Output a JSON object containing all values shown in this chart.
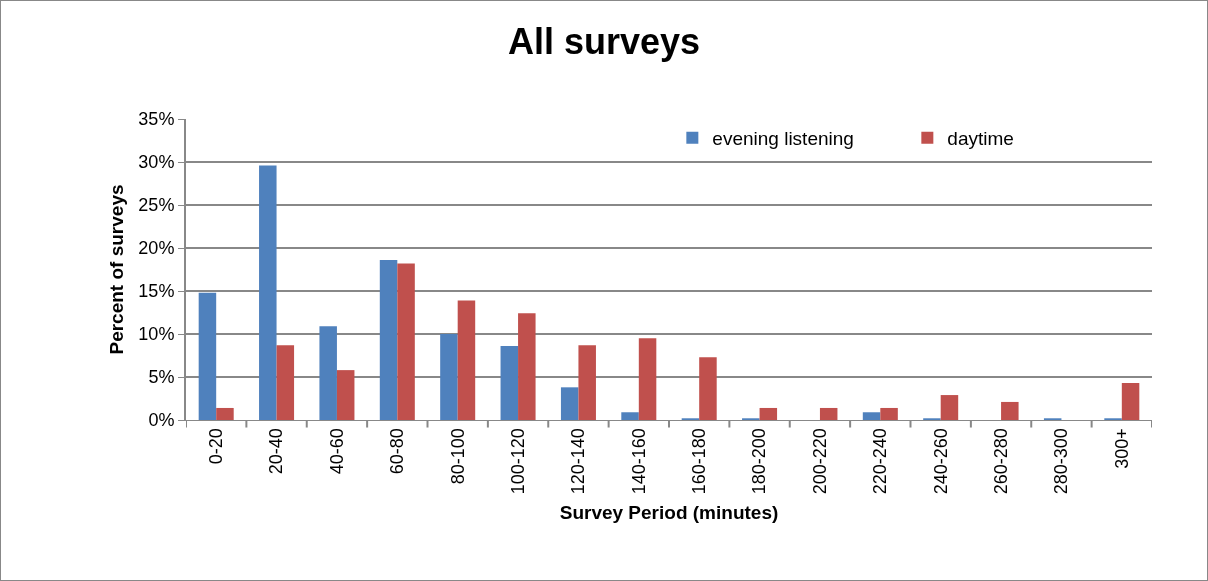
{
  "chart_data": {
    "type": "bar",
    "title": "All surveys",
    "xlabel": "Survey Period (minutes)",
    "ylabel": "Percent of surveys",
    "categories": [
      "0-20",
      "20-40",
      "40-60",
      "60-80",
      "80-100",
      "100-120",
      "120-140",
      "140-160",
      "160-180",
      "180-200",
      "200-220",
      "220-240",
      "240-260",
      "260-280",
      "280-300",
      "300+"
    ],
    "series": [
      {
        "name": "evening listening",
        "color": "#4f81bd",
        "values": [
          14.8,
          29.6,
          10.9,
          18.6,
          10.0,
          8.6,
          3.8,
          0.9,
          0.2,
          0.2,
          0,
          0.9,
          0.2,
          0,
          0.2,
          0.2
        ]
      },
      {
        "name": "daytime",
        "color": "#c0504d",
        "values": [
          1.4,
          8.7,
          5.8,
          18.2,
          13.9,
          12.4,
          8.7,
          9.5,
          7.3,
          1.4,
          1.4,
          1.4,
          2.9,
          2.1,
          0,
          4.3
        ]
      }
    ],
    "ylim": [
      0,
      35
    ],
    "yticks": [
      {
        "value": 0,
        "label": "0%"
      },
      {
        "value": 5,
        "label": "5%"
      },
      {
        "value": 10,
        "label": "10%"
      },
      {
        "value": 15,
        "label": "15%"
      },
      {
        "value": 20,
        "label": "20%"
      },
      {
        "value": 25,
        "label": "25%"
      },
      {
        "value": 30,
        "label": "30%"
      },
      {
        "value": 35,
        "label": "35%"
      }
    ],
    "grid": "y",
    "legend": "top right"
  }
}
